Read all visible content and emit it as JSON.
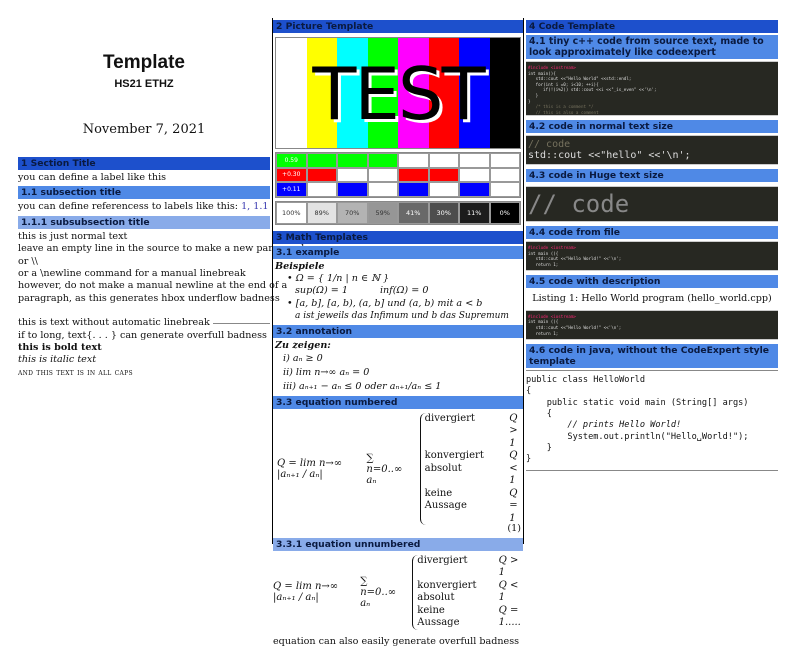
{
  "col1": {
    "title": "Template",
    "subtitle": "HS21 ETHZ",
    "date": "November 7, 2021",
    "sec1": "1  Section Title",
    "sec1_text": "you can define a label like this",
    "sub11": "1.1  subsection title",
    "sub11_text": "you can define referencess to labels like this:",
    "sub11_refs": "1, 1.1",
    "ssub111": "1.1.1  subsubsection title",
    "lines": [
      "this is just normal text",
      "leave an empty line in the source to make a new paragraph",
      "or \\\\",
      "or a \\newline command for a manual linebreak",
      "however, do not make a manual newline at the end of a",
      "paragraph, as this generates hbox underflow badness"
    ],
    "lines2": [
      "this is text without automatic linebreak",
      "if to long, text{. . . } can generate overfull badness"
    ],
    "bold": "this is bold text",
    "italic": "this is italic text",
    "caps": "and this text is in all caps"
  },
  "col2": {
    "sec2": "2  Picture Template",
    "test_word": "TEST",
    "bars": [
      "#ffffff",
      "#ffff00",
      "#00ffff",
      "#00ff00",
      "#ff00ff",
      "#ff0000",
      "#0000ff",
      "#000000"
    ],
    "grid_labels": [
      "0.59",
      "+0.30",
      "+0.11"
    ],
    "gray_labels": [
      "100%",
      "89%",
      "70%",
      "59%",
      "41%",
      "30%",
      "11%",
      "0%"
    ],
    "sec3": "3  Math Templates",
    "sub31": "3.1  example",
    "beispiele": "Beispiele",
    "b1a": "Ω = { 1/n | n ∈ ℕ }",
    "b1b": "sup(Ω) = 1",
    "b1c": "inf(Ω) = 0",
    "b2a": "[a, b], [a, b), (a, b] und (a, b) mit a < b",
    "b2b": "a ist jeweils das Infimum und b das Supremum",
    "sub32": "3.2  annotation",
    "zu": "Zu zeigen:",
    "ann": [
      "i)  aₙ ≥ 0",
      "ii)  lim n→∞ aₙ = 0",
      "iii)  aₙ₊₁ − aₙ ≤ 0 oder aₙ₊₁/aₙ ≤ 1"
    ],
    "sub33": "3.3  equation numbered",
    "eq_left": "Q = lim n→∞ |aₙ₊₁ / aₙ|",
    "eq_sum": "∑ n=0..∞ aₙ",
    "cases": [
      [
        "divergiert",
        "Q > 1"
      ],
      [
        "konvergiert absolut",
        "Q < 1"
      ],
      [
        "keine Aussage",
        "Q = 1"
      ]
    ],
    "eq_num": "(1)",
    "ssub331": "3.3.1  equation unnumbered",
    "cases2_last": "Q = 1.....",
    "overfull": "equation can also easily generate overfull badness"
  },
  "col3": {
    "sec4": "4  Code Template",
    "sub41": "4.1  tiny c++ code from source text, made to look approximately like codeexpert",
    "code41": [
      "#include <iostream>",
      "int main(){",
      "   std::cout <<\"Hello World\" <<std::endl;",
      "   for(int i =0; i<10; ++i){",
      "      if(!(i%2)) std::cout <<i <<\"_is_even\" <<'\\n';",
      "   }",
      "}",
      "   /* this is a comment */",
      "   // this is also a comment"
    ],
    "sub42": "4.2  code in normal text size",
    "code42_comment": "// code",
    "code42_line": "std::cout <<\"hello\" <<'\\n';",
    "sub43": "4.3  code in Huge text size",
    "code43": "// code",
    "sub44": "4.4  code from file",
    "codefile": [
      "#include <iostream>",
      "",
      "int main (){",
      "   std::cout <<\"Hello World!\" <<'\\n';",
      "   return 1;"
    ],
    "sub45": "4.5  code with description",
    "listing": "Listing 1: Hello World program (hello_world.cpp)",
    "sub46": "4.6  code in java, without the CodeExpert style template",
    "java": [
      "public class HelloWorld",
      "{",
      "    public static void main (String[] args)",
      "    {",
      "        // prints Hello World!",
      "        System.out.println(\"Hello␣World!\");",
      "    }",
      "}"
    ]
  }
}
